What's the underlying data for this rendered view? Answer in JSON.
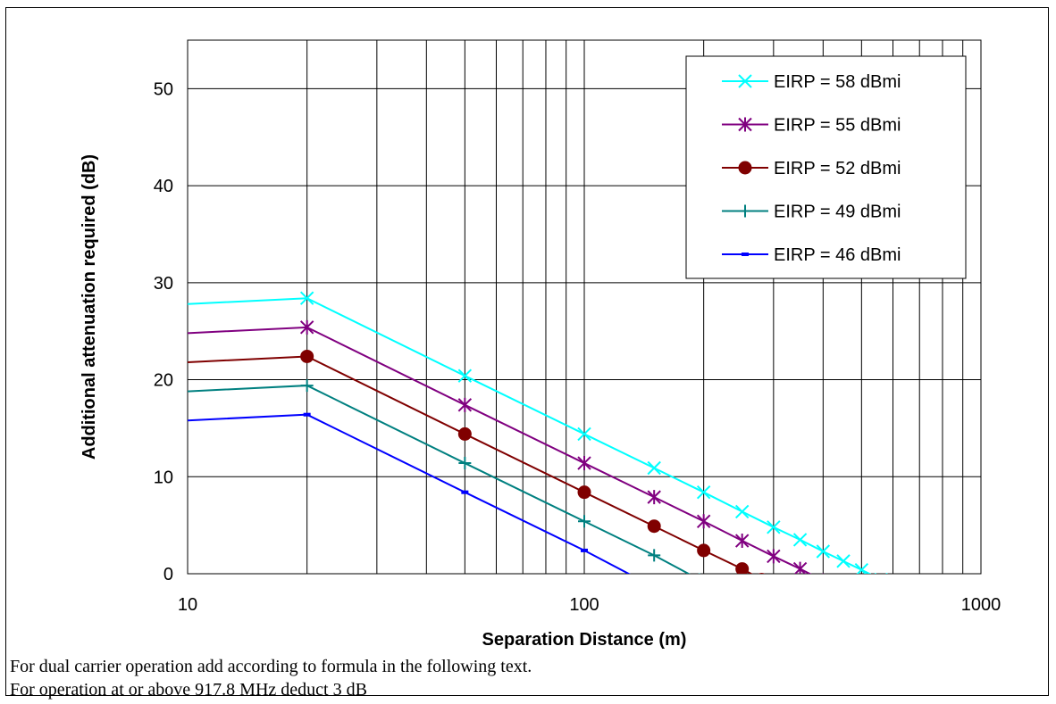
{
  "chart_data": {
    "type": "line",
    "title": "",
    "xlabel": "Separation Distance (m)",
    "ylabel": "Additional attenuation required (dB)",
    "x_scale": "log",
    "xlim": [
      10,
      1000
    ],
    "ylim": [
      0,
      55
    ],
    "x_ticks": [
      "10",
      "100",
      "1000"
    ],
    "y_ticks": [
      "0",
      "10",
      "20",
      "30",
      "40",
      "50"
    ],
    "grid": true,
    "legend_position": "top-right",
    "series": [
      {
        "name": "EIRP = 58 dBmi",
        "color": "#00FFFF",
        "marker": "x",
        "x": [
          10,
          20,
          50,
          100,
          150,
          200,
          250,
          300,
          350,
          400,
          450,
          500,
          560
        ],
        "y": [
          27.8,
          28.4,
          20.4,
          14.4,
          10.9,
          8.4,
          6.4,
          4.8,
          3.5,
          2.3,
          1.3,
          0.4,
          -0.6
        ],
        "marker_count": 12
      },
      {
        "name": "EIRP = 55 dBmi",
        "color": "#800080",
        "marker": "asterisk",
        "x": [
          10,
          20,
          50,
          100,
          150,
          200,
          250,
          300,
          350,
          400
        ],
        "y": [
          24.8,
          25.4,
          17.4,
          11.4,
          7.9,
          5.4,
          3.4,
          1.8,
          0.5,
          -0.7
        ],
        "marker_count": 9
      },
      {
        "name": "EIRP = 52 dBmi",
        "color": "#800000",
        "marker": "circle",
        "x": [
          10,
          20,
          50,
          100,
          150,
          200,
          250,
          280
        ],
        "y": [
          21.8,
          22.4,
          14.4,
          8.4,
          4.9,
          2.4,
          0.5,
          -0.6
        ],
        "marker_count": 7
      },
      {
        "name": "EIRP = 49 dBmi",
        "color": "#008080",
        "marker": "plus",
        "x": [
          10,
          20,
          50,
          100,
          150,
          195
        ],
        "y": [
          18.8,
          19.4,
          11.4,
          5.4,
          1.9,
          -0.6
        ],
        "marker_count": 5
      },
      {
        "name": "EIRP = 46 dBmi",
        "color": "#0000FF",
        "marker": "dash",
        "x": [
          10,
          20,
          50,
          100,
          138
        ],
        "y": [
          15.8,
          16.4,
          8.4,
          2.4,
          -0.6
        ],
        "marker_count": 4
      }
    ]
  },
  "notes": [
    "For dual carrier operation add according to formula in the following text.",
    "For operation at or above 917.8 MHz deduct 3 dB"
  ]
}
